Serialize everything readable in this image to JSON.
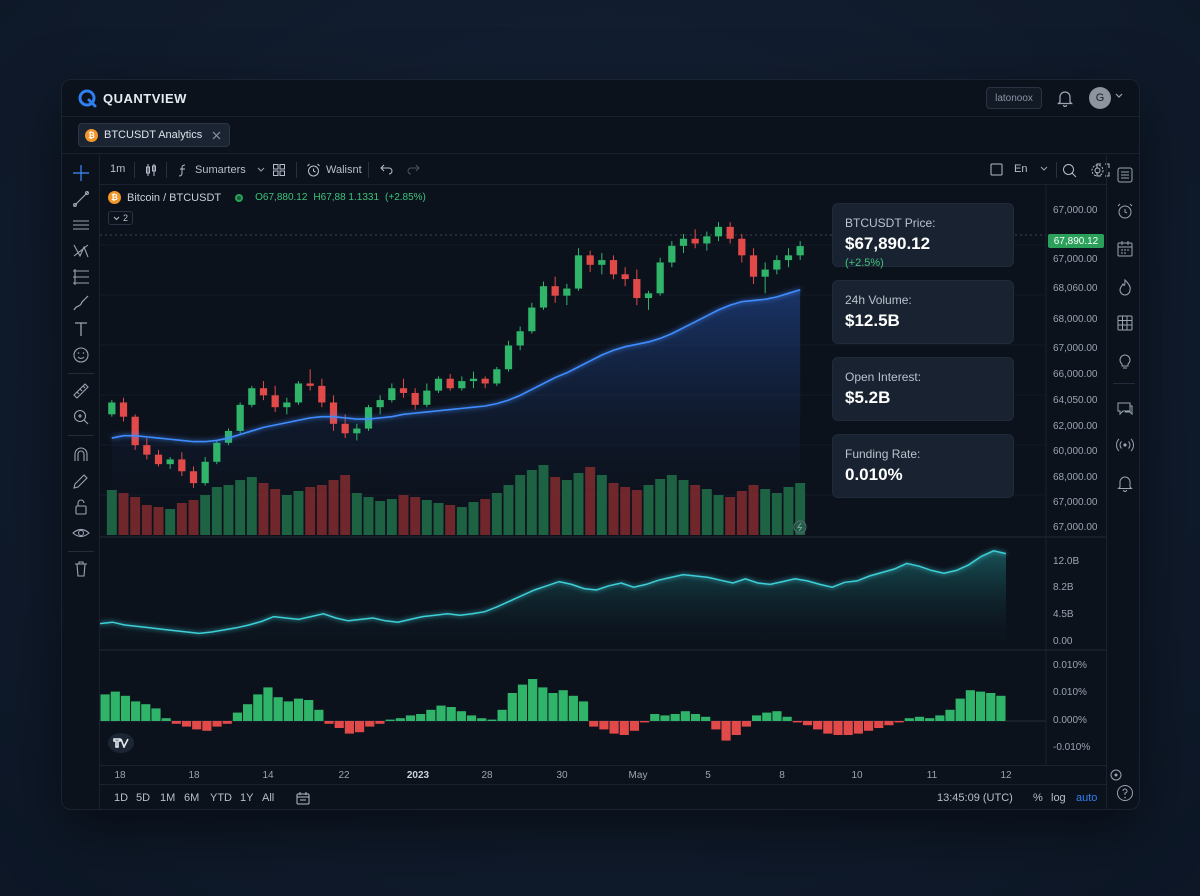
{
  "app": {
    "name": "QUANTVIEW",
    "top_button": "latonoox",
    "avatar_letter": "G"
  },
  "tab": {
    "label": "BTCUSDT Analytics",
    "coin_glyph": "₿"
  },
  "toolbar": {
    "interval": "1m",
    "indicators_label": "Sumarters",
    "alert_label": "Walisnt",
    "lang_label": "En"
  },
  "symbol": {
    "name": "Bitcoin / BTCUSDT",
    "ohlc_o": "O67,880.12",
    "ohlc_h": "H67,88 1.1331",
    "ohlc_change": "(+2.85%)",
    "collapse_count": "2"
  },
  "stats": {
    "price_label": "BTCUSDT Price:",
    "price_value": "$67,890.12",
    "price_change": "(+2.5%)",
    "volume_label": "24h Volume:",
    "volume_value": "$12.5B",
    "oi_label": "Open Interest:",
    "oi_value": "$5.2B",
    "funding_label": "Funding Rate:",
    "funding_value": "0.010%"
  },
  "price_tag": "67,890.12",
  "price_axis": [
    "67,000.00",
    "67,000.00",
    "68,060.00",
    "68,000.00",
    "67,000.00",
    "66,000.00",
    "64,050.00",
    "62,000.00",
    "60,000.00",
    "68,000.00",
    "67,000.00",
    "67,000.00"
  ],
  "volume_axis": [
    "12.0B",
    "8.2B",
    "4.5B",
    "0.00"
  ],
  "funding_axis": [
    "0.010%",
    "0.010%",
    "0.000%",
    "-0.010%"
  ],
  "time_axis": [
    "18",
    "18",
    "14",
    "22",
    "2023",
    "28",
    "30",
    "May",
    "5",
    "8",
    "10",
    "11",
    "12"
  ],
  "ranges": [
    "1D",
    "5D",
    "1M",
    "6M",
    "YTD",
    "1Y",
    "All"
  ],
  "clock": "13:45:09 (UTC)",
  "scale_options": {
    "pct": "%",
    "log": "log",
    "auto": "auto"
  },
  "colors": {
    "up": "#2fb46a",
    "down": "#e24a4a",
    "ma": "#3f8cff",
    "oi": "#3ecfd8",
    "accent": "#2f7ff0"
  },
  "chart_data": [
    {
      "type": "candlestick",
      "title": "",
      "ohlc": [
        [
          60800,
          61400,
          60700,
          61300
        ],
        [
          61300,
          61500,
          60500,
          60700
        ],
        [
          60700,
          60800,
          59300,
          59500
        ],
        [
          59500,
          59800,
          58900,
          59100
        ],
        [
          59100,
          59300,
          58600,
          58700
        ],
        [
          58700,
          59000,
          58500,
          58900
        ],
        [
          58900,
          59200,
          58200,
          58400
        ],
        [
          58400,
          58600,
          57700,
          57900
        ],
        [
          57900,
          59000,
          57800,
          58800
        ],
        [
          58800,
          59700,
          58700,
          59600
        ],
        [
          59600,
          60200,
          59500,
          60100
        ],
        [
          60100,
          61300,
          60000,
          61200
        ],
        [
          61200,
          62000,
          61100,
          61900
        ],
        [
          61900,
          62200,
          61400,
          61600
        ],
        [
          61600,
          62000,
          60900,
          61100
        ],
        [
          61100,
          61500,
          60800,
          61300
        ],
        [
          61300,
          62200,
          61200,
          62100
        ],
        [
          62100,
          62700,
          61800,
          62000
        ],
        [
          62000,
          62300,
          61100,
          61300
        ],
        [
          61300,
          61600,
          60100,
          60400
        ],
        [
          60400,
          60800,
          59800,
          60000
        ],
        [
          60000,
          60400,
          59700,
          60200
        ],
        [
          60200,
          61200,
          60100,
          61100
        ],
        [
          61100,
          61600,
          60800,
          61400
        ],
        [
          61400,
          62100,
          61300,
          61900
        ],
        [
          61900,
          62300,
          61500,
          61700
        ],
        [
          61700,
          61900,
          61000,
          61200
        ],
        [
          61200,
          62100,
          61100,
          61800
        ],
        [
          61800,
          62400,
          61700,
          62300
        ],
        [
          62300,
          62500,
          61800,
          61900
        ],
        [
          61900,
          62400,
          61800,
          62200
        ],
        [
          62200,
          62600,
          61900,
          62300
        ],
        [
          62300,
          62400,
          61900,
          62100
        ],
        [
          62100,
          62800,
          62000,
          62700
        ],
        [
          62700,
          63900,
          62600,
          63700
        ],
        [
          63700,
          64500,
          63500,
          64300
        ],
        [
          64300,
          65500,
          64200,
          65300
        ],
        [
          65300,
          66400,
          65200,
          66200
        ],
        [
          66200,
          66600,
          65500,
          65800
        ],
        [
          65800,
          66300,
          65400,
          66100
        ],
        [
          66100,
          67800,
          66000,
          67500
        ],
        [
          67500,
          67700,
          66800,
          67100
        ],
        [
          67100,
          67600,
          66700,
          67300
        ],
        [
          67300,
          67500,
          66500,
          66700
        ],
        [
          66700,
          67000,
          66200,
          66500
        ],
        [
          66500,
          66900,
          65400,
          65700
        ],
        [
          65700,
          66000,
          65200,
          65900
        ],
        [
          65900,
          67400,
          65800,
          67200
        ],
        [
          67200,
          68100,
          67000,
          67900
        ],
        [
          67900,
          68400,
          67600,
          68200
        ],
        [
          68200,
          68600,
          67800,
          68000
        ],
        [
          68000,
          68500,
          67700,
          68300
        ],
        [
          68300,
          68900,
          68100,
          68700
        ],
        [
          68700,
          68900,
          68000,
          68200
        ],
        [
          68200,
          68400,
          67200,
          67500
        ],
        [
          67500,
          67800,
          66300,
          66600
        ],
        [
          66600,
          67200,
          65900,
          66900
        ],
        [
          66900,
          67500,
          66700,
          67300
        ],
        [
          67300,
          67800,
          67000,
          67500
        ],
        [
          67500,
          68100,
          67300,
          67890
        ]
      ],
      "moving_average": [
        59800,
        59900,
        59900,
        59850,
        59800,
        59750,
        59700,
        59650,
        59650,
        59700,
        59800,
        59950,
        60100,
        60250,
        60350,
        60450,
        60550,
        60650,
        60700,
        60700,
        60650,
        60600,
        60600,
        60650,
        60700,
        60800,
        60850,
        60900,
        60950,
        61000,
        61050,
        61100,
        61150,
        61250,
        61400,
        61600,
        61850,
        62100,
        62350,
        62550,
        62800,
        63050,
        63300,
        63500,
        63650,
        63750,
        63850,
        64000,
        64200,
        64450,
        64700,
        64950,
        65200,
        65400,
        65550,
        65600,
        65650,
        65750,
        65900,
        66050
      ],
      "volume": [
        45,
        42,
        38,
        30,
        28,
        26,
        32,
        35,
        40,
        48,
        50,
        55,
        58,
        52,
        46,
        40,
        44,
        48,
        50,
        55,
        60,
        42,
        38,
        34,
        36,
        40,
        38,
        35,
        32,
        30,
        28,
        33,
        36,
        42,
        50,
        60,
        65,
        70,
        58,
        55,
        62,
        68,
        60,
        52,
        48,
        45,
        50,
        56,
        60,
        55,
        50,
        46,
        40,
        38,
        44,
        50,
        46,
        42,
        48,
        52
      ],
      "volume_colors_up": [
        true,
        false,
        false,
        false,
        false,
        true,
        false,
        false,
        true,
        true,
        true,
        true,
        true,
        false,
        false,
        true,
        true,
        false,
        false,
        false,
        false,
        true,
        true,
        true,
        true,
        false,
        false,
        true,
        true,
        false,
        true,
        true,
        false,
        true,
        true,
        true,
        true,
        true,
        false,
        true,
        true,
        false,
        true,
        false,
        false,
        false,
        true,
        true,
        true,
        true,
        false,
        true,
        true,
        false,
        false,
        false,
        true,
        true,
        true,
        true
      ]
    },
    {
      "type": "area",
      "title": "",
      "ylim": [
        0,
        14
      ],
      "values": [
        2.2,
        2.4,
        2.0,
        1.8,
        1.6,
        1.4,
        1.2,
        1.0,
        0.8,
        1.0,
        1.3,
        1.6,
        2.0,
        2.5,
        3.2,
        3.0,
        2.8,
        3.2,
        3.6,
        3.0,
        2.6,
        2.8,
        3.0,
        2.6,
        2.4,
        2.8,
        3.2,
        3.4,
        3.6,
        3.4,
        3.6,
        3.9,
        4.6,
        5.4,
        6.2,
        7.0,
        7.6,
        8.2,
        7.8,
        7.2,
        7.0,
        7.6,
        8.0,
        7.4,
        7.8,
        8.4,
        8.8,
        9.2,
        9.0,
        8.8,
        8.4,
        8.0,
        8.6,
        8.0,
        7.8,
        8.2,
        8.6,
        8.3,
        7.8,
        7.4,
        8.1,
        8.3,
        9.0,
        9.5,
        10.0,
        10.8,
        10.4,
        9.8,
        9.4,
        9.8,
        10.6,
        11.8,
        12.6,
        12.2
      ]
    },
    {
      "type": "bar",
      "title": "",
      "values": [
        0.0095,
        0.0105,
        0.009,
        0.007,
        0.006,
        0.0045,
        0.001,
        -0.001,
        -0.002,
        -0.003,
        -0.0035,
        -0.002,
        -0.001,
        0.003,
        0.006,
        0.0095,
        0.012,
        0.0085,
        0.007,
        0.008,
        0.0075,
        0.004,
        -0.001,
        -0.0025,
        -0.0045,
        -0.004,
        -0.002,
        -0.001,
        0.0005,
        0.001,
        0.002,
        0.0025,
        0.004,
        0.0055,
        0.005,
        0.0035,
        0.002,
        0.001,
        0.0005,
        0.004,
        0.01,
        0.013,
        0.015,
        0.012,
        0.01,
        0.011,
        0.009,
        0.007,
        -0.002,
        -0.003,
        -0.0045,
        -0.005,
        -0.0035,
        -0.0005,
        0.0025,
        0.002,
        0.0025,
        0.0035,
        0.0025,
        0.0015,
        -0.003,
        -0.007,
        -0.005,
        -0.002,
        0.002,
        0.003,
        0.0035,
        0.0015,
        -0.0005,
        -0.0015,
        -0.003,
        -0.0045,
        -0.005,
        -0.005,
        -0.0045,
        -0.0035,
        -0.0025,
        -0.0015,
        -0.0005,
        0.001,
        0.0015,
        0.001,
        0.002,
        0.004,
        0.008,
        0.011,
        0.0105,
        0.01,
        0.009
      ],
      "ylim": [
        -0.015,
        0.018
      ]
    }
  ]
}
